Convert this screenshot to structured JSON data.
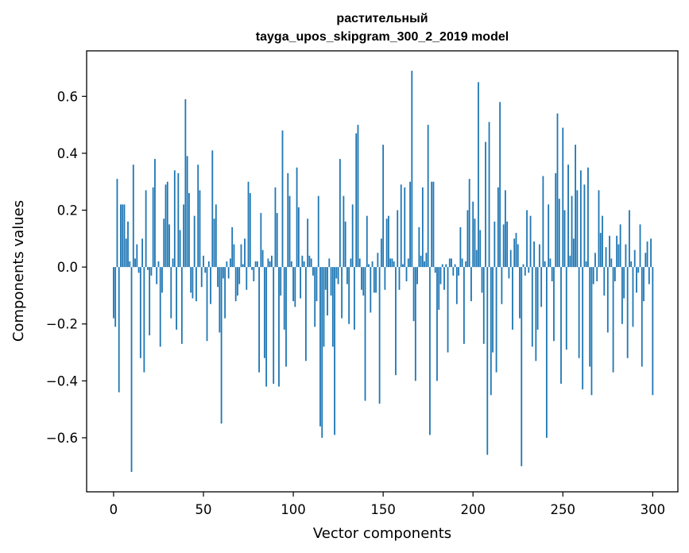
{
  "chart_data": {
    "type": "bar",
    "title_line1": "растительный",
    "title_line2": "tayga_upos_skipgram_300_2_2019 model",
    "xlabel": "Vector components",
    "ylabel": "Components values",
    "xlim": [
      -15,
      314
    ],
    "ylim": [
      -0.79,
      0.76
    ],
    "xticks": [
      0,
      50,
      100,
      150,
      200,
      250,
      300
    ],
    "yticks": [
      -0.6,
      -0.4,
      -0.2,
      0.0,
      0.2,
      0.4,
      0.6
    ],
    "bar_color": "#1f77b4",
    "grid": false,
    "values": [
      -0.18,
      -0.21,
      0.31,
      -0.44,
      0.22,
      0.22,
      0.22,
      0.1,
      0.16,
      0.02,
      -0.72,
      0.36,
      0.03,
      0.08,
      -0.02,
      -0.32,
      0.1,
      -0.37,
      0.27,
      -0.01,
      -0.24,
      -0.03,
      0.28,
      0.38,
      -0.06,
      0.02,
      -0.28,
      -0.09,
      0.17,
      0.29,
      0.3,
      0.15,
      -0.18,
      0.03,
      0.34,
      -0.22,
      0.33,
      0.13,
      -0.27,
      0.22,
      0.59,
      0.39,
      0.26,
      -0.09,
      -0.11,
      0.18,
      -0.12,
      0.36,
      0.27,
      -0.07,
      0.04,
      -0.02,
      -0.26,
      0.02,
      -0.13,
      0.41,
      0.17,
      0.22,
      -0.07,
      -0.23,
      -0.55,
      -0.04,
      -0.18,
      0.02,
      -0.04,
      0.03,
      0.14,
      0.08,
      -0.12,
      -0.1,
      -0.06,
      0.08,
      0.01,
      0.1,
      -0.08,
      0.3,
      0.26,
      -0.01,
      -0.05,
      0.02,
      0.02,
      -0.37,
      0.19,
      0.06,
      -0.32,
      -0.42,
      0.03,
      0.02,
      0.04,
      -0.41,
      0.28,
      0.19,
      -0.42,
      -0.1,
      0.48,
      -0.22,
      -0.35,
      0.33,
      0.25,
      0.02,
      -0.12,
      -0.14,
      0.35,
      0.21,
      -0.11,
      0.04,
      0.02,
      -0.33,
      0.17,
      0.04,
      0.03,
      -0.03,
      -0.21,
      -0.12,
      0.25,
      -0.56,
      -0.6,
      -0.28,
      -0.08,
      -0.17,
      0.03,
      -0.1,
      -0.28,
      -0.59,
      -0.04,
      -0.06,
      0.38,
      -0.18,
      0.25,
      0.16,
      -0.06,
      -0.2,
      0.03,
      0.22,
      -0.22,
      0.47,
      0.5,
      0.03,
      -0.08,
      -0.1,
      -0.47,
      0.18,
      0.01,
      -0.16,
      0.02,
      -0.09,
      -0.09,
      0.05,
      -0.48,
      0.1,
      0.43,
      -0.08,
      0.17,
      0.18,
      0.03,
      0.03,
      0.02,
      -0.38,
      0.2,
      -0.08,
      0.29,
      0.01,
      0.28,
      -0.05,
      0.03,
      0.3,
      0.69,
      -0.19,
      -0.4,
      -0.06,
      0.14,
      0.04,
      0.28,
      0.02,
      0.05,
      0.5,
      -0.59,
      0.3,
      0.3,
      -0.02,
      -0.4,
      -0.15,
      -0.06,
      0.01,
      -0.08,
      0.01,
      -0.3,
      0.03,
      0.03,
      -0.03,
      0.01,
      -0.13,
      -0.03,
      0.14,
      0.03,
      -0.27,
      0.02,
      0.2,
      0.31,
      -0.12,
      0.23,
      0.17,
      0.06,
      0.65,
      0.13,
      -0.09,
      -0.27,
      0.44,
      -0.66,
      0.51,
      -0.45,
      -0.3,
      0.16,
      -0.37,
      0.28,
      0.58,
      -0.13,
      0.15,
      0.27,
      0.16,
      -0.04,
      0.06,
      -0.22,
      0.1,
      0.12,
      0.08,
      -0.18,
      -0.7,
      0.01,
      -0.03,
      0.2,
      -0.02,
      0.18,
      -0.28,
      0.09,
      -0.33,
      -0.22,
      0.08,
      -0.14,
      0.32,
      0.02,
      -0.6,
      0.22,
      0.03,
      -0.05,
      -0.26,
      0.33,
      0.54,
      0.24,
      -0.41,
      0.49,
      0.2,
      -0.29,
      0.36,
      0.04,
      0.25,
      0.1,
      0.43,
      0.27,
      -0.32,
      0.34,
      -0.43,
      0.29,
      0.02,
      0.35,
      -0.35,
      -0.45,
      -0.06,
      0.05,
      -0.05,
      0.27,
      0.12,
      0.18,
      -0.1,
      0.07,
      -0.23,
      0.11,
      0.03,
      -0.37,
      -0.05,
      0.11,
      0.08,
      0.15,
      -0.2,
      -0.11,
      0.08,
      -0.32,
      0.2,
      0.02,
      -0.21,
      0.06,
      -0.09,
      -0.02,
      0.15,
      -0.35,
      -0.12,
      0.05,
      0.09,
      -0.06,
      0.1,
      -0.45
    ]
  }
}
